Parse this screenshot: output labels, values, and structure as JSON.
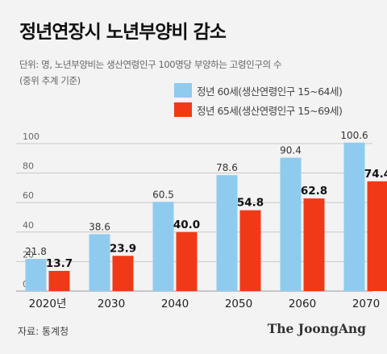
{
  "title": "정년연장시 노년부양비 감소",
  "subtitle_line1": "단위: 명, 노년부양비는 생산연령인구 100명당 부양하는 고령인구의 수",
  "subtitle_line2": "(중위 추계 기준)",
  "source": "자료: 통계청",
  "brand": "The JoongAng",
  "colors": {
    "series1": "#8fcbee",
    "series2": "#f03a17",
    "grid": "#c8c8c8",
    "background": "#f3f3f3"
  },
  "chart_data": {
    "type": "bar",
    "categories": [
      "2020년",
      "2030",
      "2040",
      "2050",
      "2060",
      "2070"
    ],
    "series": [
      {
        "name": "정년 60세(생산연령인구 15~64세)",
        "values": [
          21.8,
          38.6,
          60.5,
          78.6,
          90.4,
          100.6
        ]
      },
      {
        "name": "정년 65세(생산연령인구 15~69세)",
        "values": [
          13.7,
          23.9,
          40.0,
          54.8,
          62.8,
          74.4
        ]
      }
    ],
    "value_labels": [
      [
        "21.8",
        "38.6",
        "60.5",
        "78.6",
        "90.4",
        "100.6"
      ],
      [
        "13.7",
        "23.9",
        "40.0",
        "54.8",
        "62.8",
        "74.4"
      ]
    ],
    "yticks": [
      "0",
      "20",
      "40",
      "60",
      "80",
      "100"
    ],
    "ytick_values": [
      0,
      20,
      40,
      60,
      80,
      100
    ],
    "ylim": [
      0,
      100
    ],
    "grid": true,
    "legend_position": "top-right"
  }
}
